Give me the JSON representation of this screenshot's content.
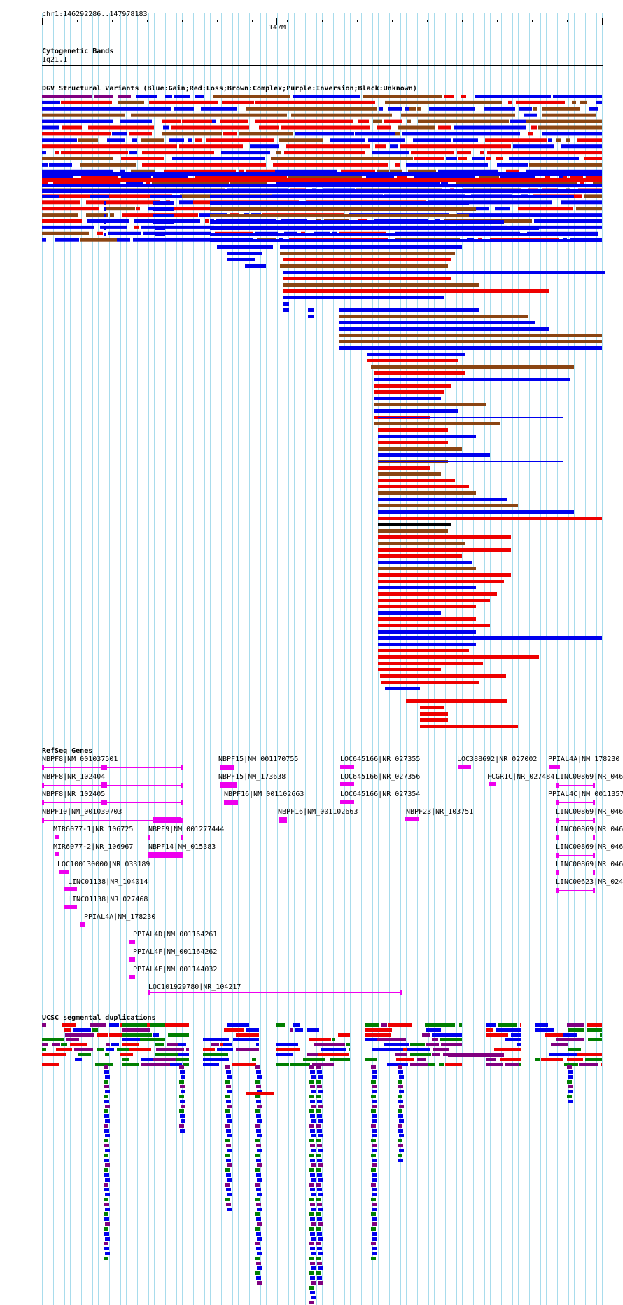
{
  "ruler": {
    "coordinates": "chr1:146292286..147978183",
    "tick_label": "147M"
  },
  "colors": {
    "gain": "#0000ee",
    "loss": "#ee0000",
    "complex": "#8b4513",
    "inversion": "#800080",
    "unknown": "#000000",
    "gene": "#ee00ee",
    "grid": "#a8dcec",
    "segdup_green": "#007f00",
    "segdup_purple": "#800080",
    "segdup_red": "#ee0000",
    "segdup_blue": "#0000ee"
  },
  "tracks": {
    "cytoband": {
      "title": "Cytogenetic Bands",
      "band": "1q21.1"
    },
    "dgv": {
      "title": "DGV Structural Variants (Blue:Gain;Red:Loss;Brown:Complex;Purple:Inversion;Black:Unknown)"
    },
    "refseq": {
      "title": "RefSeq Genes",
      "genes": [
        "NBPF8|NM_001037501",
        "NBPF8|NR_102404",
        "NBPF8|NR_102405",
        "NBPF10|NM_001039703",
        "MIR6077-1|NR_106725",
        "MIR6077-2|NR_106967",
        "LOC100130000|NR_033189",
        "LINC01138|NR_104014",
        "LINC01138|NR_027468",
        "PPIAL4A|NM_178230",
        "PPIAL4D|NM_001164261",
        "PPIAL4F|NM_001164262",
        "PPIAL4E|NM_001144032",
        "LOC101929780|NR_104217",
        "NBPF9|NM_001277444",
        "NBPF14|NM_015383",
        "NBPF15|NM_001170755",
        "NBPF15|NM_173638",
        "NBPF16|NM_001102663",
        "NBPF16|NM_001102663",
        "LOC645166|NR_027355",
        "LOC645166|NR_027356",
        "LOC645166|NR_027354",
        "NBPF23|NR_103751",
        "LOC388692|NR_027002",
        "FCGR1C|NR_027484",
        "PPIAL4A|NM_178230",
        "LINC00869|NR_046",
        "PPIAL4C|NM_0011357",
        "LINC00869|NR_046",
        "LINC00869|NR_046",
        "LINC00869|NR_046",
        "LINC00869|NR_046",
        "LINC00623|NR_024"
      ]
    },
    "segdup": {
      "title": "UCSC segmental duplications"
    }
  }
}
